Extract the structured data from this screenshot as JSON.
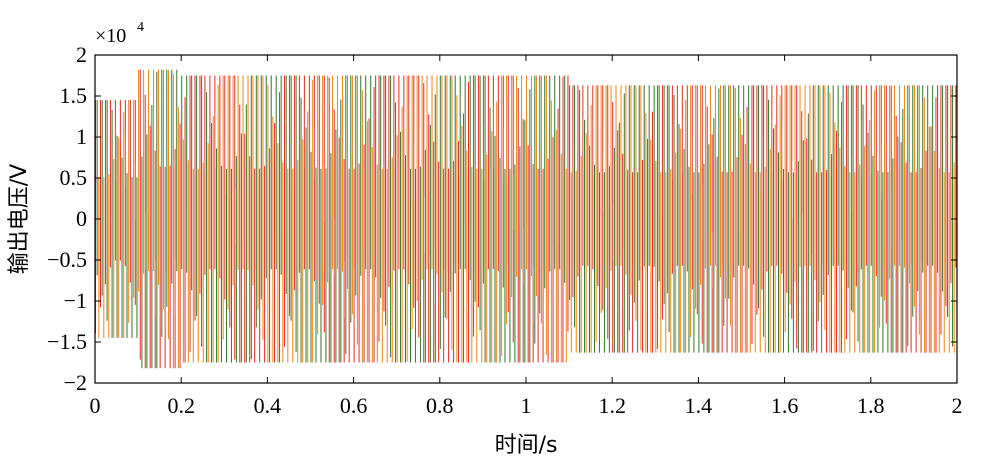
{
  "chart_data": {
    "type": "line",
    "xlabel": "时间/s",
    "ylabel": "输出电压/V",
    "y_multiplier": {
      "base": "×10",
      "exponent": "4"
    },
    "xlim": [
      0,
      2
    ],
    "ylim": [
      -2,
      2
    ],
    "x_ticks": [
      {
        "value": 0,
        "label": "0"
      },
      {
        "value": 0.2,
        "label": "0.2"
      },
      {
        "value": 0.4,
        "label": "0.4"
      },
      {
        "value": 0.6,
        "label": "0.6"
      },
      {
        "value": 0.8,
        "label": "0.8"
      },
      {
        "value": 1.0,
        "label": "1"
      },
      {
        "value": 1.2,
        "label": "1.2"
      },
      {
        "value": 1.4,
        "label": "1.4"
      },
      {
        "value": 1.6,
        "label": "1.6"
      },
      {
        "value": 1.8,
        "label": "1.8"
      },
      {
        "value": 2.0,
        "label": "2"
      }
    ],
    "y_ticks": [
      {
        "value": 2,
        "label": "2"
      },
      {
        "value": 1.5,
        "label": "1.5"
      },
      {
        "value": 1,
        "label": "1"
      },
      {
        "value": 0.5,
        "label": "0.5"
      },
      {
        "value": 0,
        "label": "0"
      },
      {
        "value": -0.5,
        "label": "−0.5"
      },
      {
        "value": -1,
        "label": "−1"
      },
      {
        "value": -1.5,
        "label": "−1.5"
      },
      {
        "value": -2,
        "label": "−2"
      }
    ],
    "grid": false,
    "series": [
      {
        "color": "#e8322a"
      },
      {
        "color": "#3d7a2f"
      },
      {
        "color": "#ee8a1f"
      }
    ],
    "envelope_segments": [
      {
        "x_start": 0.0,
        "x_end": 0.1,
        "amplitude": 1.45
      },
      {
        "x_start": 0.1,
        "x_end": 0.2,
        "amplitude": 1.82
      },
      {
        "x_start": 0.2,
        "x_end": 1.1,
        "amplitude": 1.75
      },
      {
        "x_start": 1.1,
        "x_end": 2.0,
        "amplitude": 1.63
      }
    ]
  }
}
